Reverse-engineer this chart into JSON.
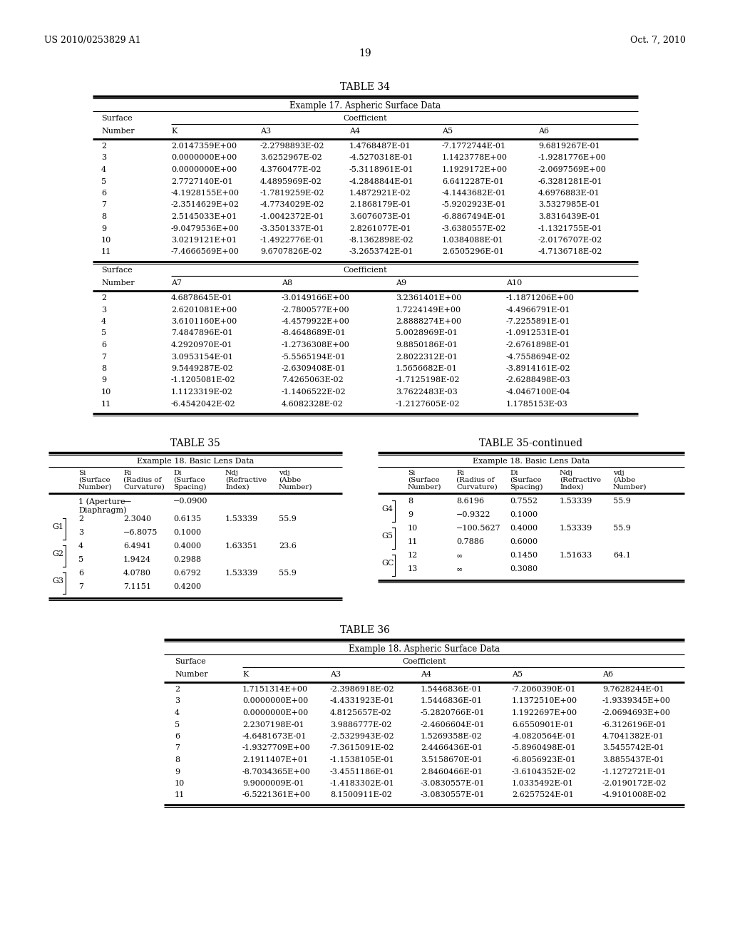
{
  "header_left": "US 2010/0253829 A1",
  "header_right": "Oct. 7, 2010",
  "page_number": "19",
  "bg_color": "#ffffff",
  "table34_title": "TABLE 34",
  "table34_subtitle": "Example 17. Aspheric Surface Data",
  "table34_part1_headers": [
    "Number",
    "K",
    "A3",
    "A4",
    "A5",
    "A6"
  ],
  "table34_part1_data": [
    [
      "2",
      "2.0147359E+00",
      "-2.2798893E-02",
      "1.4768487E-01",
      "-7.1772744E-01",
      "9.6819267E-01"
    ],
    [
      "3",
      "0.0000000E+00",
      "3.6252967E-02",
      "-4.5270318E-01",
      "1.1423778E+00",
      "-1.9281776E+00"
    ],
    [
      "4",
      "0.0000000E+00",
      "4.3760477E-02",
      "-5.3118961E-01",
      "1.1929172E+00",
      "-2.0697569E+00"
    ],
    [
      "5",
      "2.7727140E-01",
      "4.4895969E-02",
      "-4.2848844E-01",
      "6.6412287E-01",
      "-6.3281281E-01"
    ],
    [
      "6",
      "-4.1928155E+00",
      "-1.7819259E-02",
      "1.4872921E-02",
      "-4.1443682E-01",
      "4.6976883E-01"
    ],
    [
      "7",
      "-2.3514629E+02",
      "-4.7734029E-02",
      "2.1868179E-01",
      "-5.9202923E-01",
      "3.5327985E-01"
    ],
    [
      "8",
      "2.5145033E+01",
      "-1.0042372E-01",
      "3.6076073E-01",
      "-6.8867494E-01",
      "3.8316439E-01"
    ],
    [
      "9",
      "-9.0479536E+00",
      "-3.3501337E-01",
      "2.8261077E-01",
      "-3.6380557E-02",
      "-1.1321755E-01"
    ],
    [
      "10",
      "3.0219121E+01",
      "-1.4922776E-01",
      "-8.1362898E-02",
      "1.0384088E-01",
      "-2.0176707E-02"
    ],
    [
      "11",
      "-7.4666569E+00",
      "9.6707826E-02",
      "-3.2653742E-01",
      "2.6505296E-01",
      "-4.7136718E-02"
    ]
  ],
  "table34_part2_headers": [
    "Number",
    "A7",
    "A8",
    "A9",
    "A10"
  ],
  "table34_part2_data": [
    [
      "2",
      "4.6878645E-01",
      "-3.0149166E+00",
      "3.2361401E+00",
      "-1.1871206E+00"
    ],
    [
      "3",
      "2.6201081E+00",
      "-2.7800577E+00",
      "1.7224149E+00",
      "-4.4966791E-01"
    ],
    [
      "4",
      "3.6101160E+00",
      "-4.4579922E+00",
      "2.8888274E+00",
      "-7.2255891E-01"
    ],
    [
      "5",
      "7.4847896E-01",
      "-8.4648689E-01",
      "5.0028969E-01",
      "-1.0912531E-01"
    ],
    [
      "6",
      "4.2920970E-01",
      "-1.2736308E+00",
      "9.8850186E-01",
      "-2.6761898E-01"
    ],
    [
      "7",
      "3.0953154E-01",
      "-5.5565194E-01",
      "2.8022312E-01",
      "-4.7558694E-02"
    ],
    [
      "8",
      "9.5449287E-02",
      "-2.6309408E-01",
      "1.5656682E-01",
      "-3.8914161E-02"
    ],
    [
      "9",
      "-1.1205081E-02",
      "7.4265063E-02",
      "-1.7125198E-02",
      "-2.6288498E-03"
    ],
    [
      "10",
      "1.1123319E-02",
      "-1.1406522E-02",
      "3.7622483E-03",
      "-4.0467100E-04"
    ],
    [
      "11",
      "-6.4542042E-02",
      "4.6082328E-02",
      "-1.2127605E-02",
      "1.1785153E-03"
    ]
  ],
  "table36_title": "TABLE 36",
  "table36_subtitle": "Example 18. Aspheric Surface Data",
  "table36_part1_headers": [
    "Number",
    "K",
    "A3",
    "A4",
    "A5",
    "A6"
  ],
  "table36_part1_data": [
    [
      "2",
      "1.7151314E+00",
      "-2.3986918E-02",
      "1.5446836E-01",
      "-7.2060390E-01",
      "9.7628244E-01"
    ],
    [
      "3",
      "0.0000000E+00",
      "-4.4331923E-01",
      "1.5446836E-01",
      "1.1372510E+00",
      "-1.9339345E+00"
    ],
    [
      "4",
      "0.0000000E+00",
      "4.8125657E-02",
      "-5.2820766E-01",
      "1.1922697E+00",
      "-2.0694693E+00"
    ],
    [
      "5",
      "2.2307198E-01",
      "3.9886777E-02",
      "-2.4606604E-01",
      "6.6550901E-01",
      "-6.3126196E-01"
    ],
    [
      "6",
      "-4.6481673E-01",
      "-2.5329943E-02",
      "1.5269358E-02",
      "-4.0820564E-01",
      "4.7041382E-01"
    ],
    [
      "7",
      "-1.9327709E+00",
      "-7.3615091E-02",
      "2.4466436E-01",
      "-5.8960498E-01",
      "3.5455742E-01"
    ],
    [
      "8",
      "2.1911407E+01",
      "-1.1538105E-01",
      "3.5158670E-01",
      "-6.8056923E-01",
      "3.8855437E-01"
    ],
    [
      "9",
      "-8.7034365E+00",
      "-3.4551186E-01",
      "2.8460466E-01",
      "-3.6104352E-02",
      "-1.1272721E-01"
    ],
    [
      "10",
      "9.9000009E-01",
      "-1.4183302E-01",
      "-3.0830557E-01",
      "1.0335492E-01",
      "-2.0190172E-02"
    ],
    [
      "11",
      "-6.5221361E+00",
      "8.1500911E-02",
      "-3.0830557E-01",
      "2.6257524E-01",
      "-4.9101008E-02"
    ]
  ]
}
